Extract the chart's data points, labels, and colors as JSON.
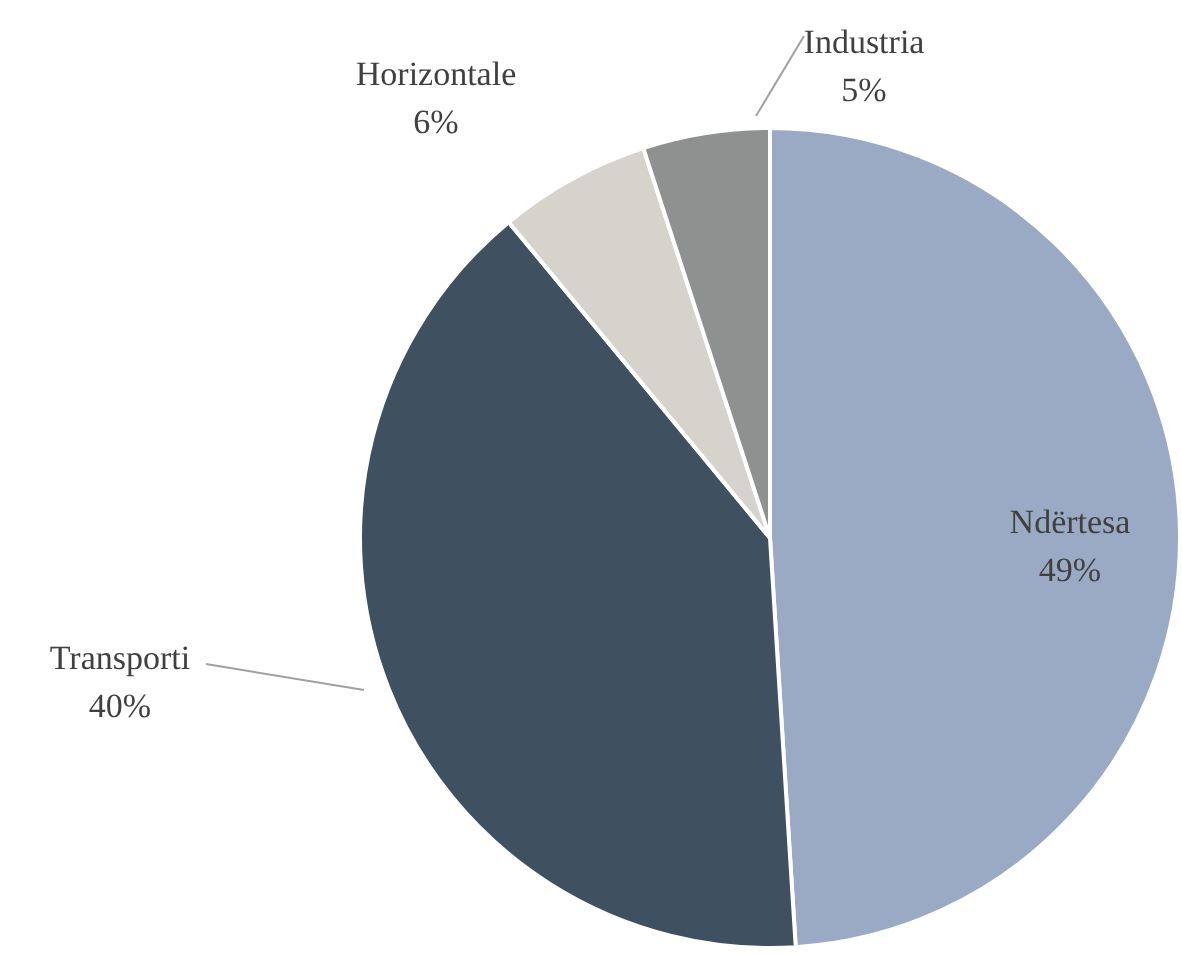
{
  "chart_data": {
    "type": "pie",
    "categories": [
      "Ndërtesa",
      "Transporti",
      "Horizontale",
      "Industria"
    ],
    "values": [
      49,
      40,
      6,
      5
    ],
    "colors": [
      "#9aaac4",
      "#3f5060",
      "#d5d3cc",
      "#8e9190"
    ],
    "value_labels": [
      "49%",
      "40%",
      "6%",
      "5%"
    ],
    "legend": false
  }
}
